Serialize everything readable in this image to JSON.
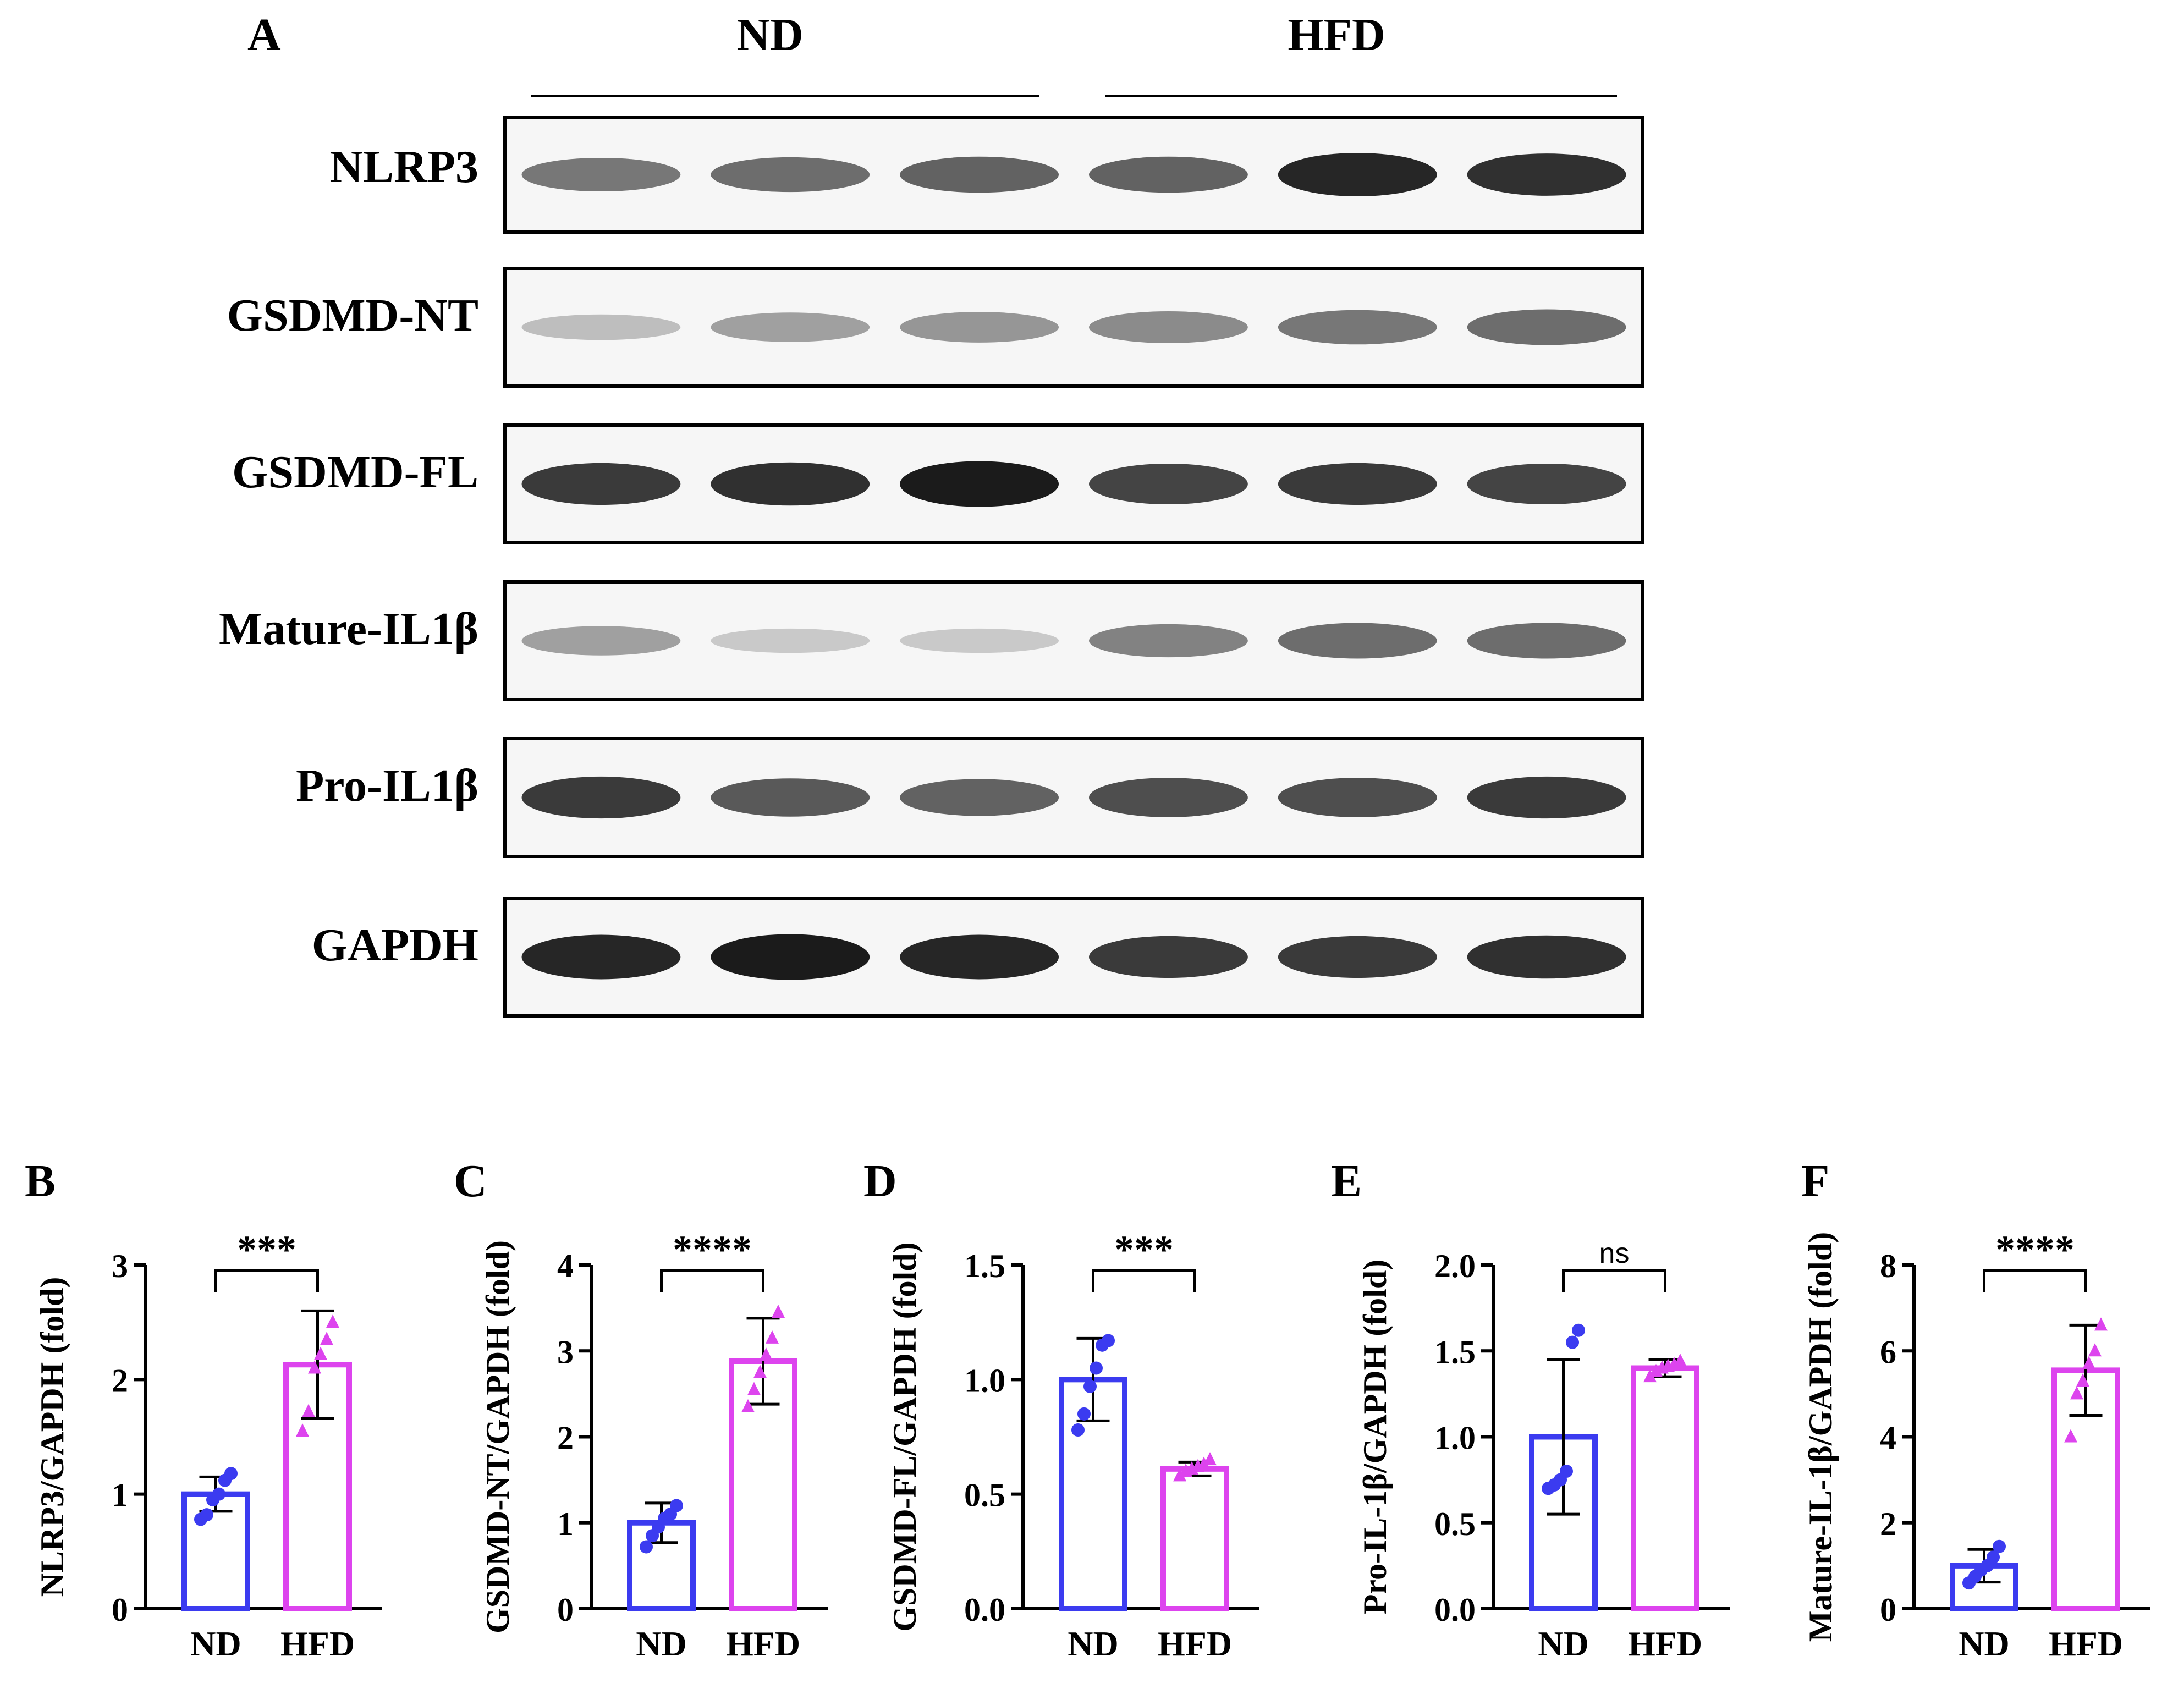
{
  "western_blot": {
    "panel_letter": "A",
    "groups": [
      {
        "label": "ND",
        "lanes": 3
      },
      {
        "label": "HFD",
        "lanes": 3
      }
    ],
    "rows": [
      {
        "label": "NLRP3",
        "intensity": [
          0.55,
          0.6,
          0.65,
          0.65,
          0.95,
          0.9
        ]
      },
      {
        "label": "GSDMD-NT",
        "intensity": [
          0.2,
          0.35,
          0.4,
          0.45,
          0.55,
          0.6
        ]
      },
      {
        "label": "GSDMD-FL",
        "intensity": [
          0.85,
          0.9,
          1.0,
          0.8,
          0.85,
          0.8
        ]
      },
      {
        "label": "Mature-IL1β",
        "intensity": [
          0.35,
          0.15,
          0.15,
          0.5,
          0.6,
          0.6
        ]
      },
      {
        "label": "Pro-IL1β",
        "intensity": [
          0.85,
          0.7,
          0.65,
          0.75,
          0.75,
          0.85
        ]
      },
      {
        "label": "GAPDH",
        "intensity": [
          0.95,
          1.0,
          0.95,
          0.85,
          0.85,
          0.9
        ]
      }
    ]
  },
  "colors": {
    "ND": "#3b3bf0",
    "HFD": "#dd44ee",
    "axis": "#000000"
  },
  "chart_data": [
    {
      "panel_letter": "B",
      "type": "bar",
      "categories": [
        "ND",
        "HFD"
      ],
      "values": [
        1.0,
        2.13
      ],
      "error": [
        0.15,
        0.47
      ],
      "points": [
        [
          0.78,
          0.82,
          0.95,
          1.0,
          1.12,
          1.18
        ],
        [
          1.55,
          1.72,
          2.1,
          2.22,
          2.35,
          2.5
        ]
      ],
      "ylabel": "NLRP3/GAPDH (fold)",
      "ylim": [
        0,
        3
      ],
      "yticks": [
        "0",
        "1",
        "2",
        "3"
      ],
      "ytick_values": [
        0,
        1,
        2,
        3
      ],
      "significance": "***"
    },
    {
      "panel_letter": "C",
      "type": "bar",
      "categories": [
        "ND",
        "HFD"
      ],
      "values": [
        1.0,
        2.88
      ],
      "error": [
        0.23,
        0.5
      ],
      "points": [
        [
          0.72,
          0.85,
          0.95,
          1.05,
          1.1,
          1.2
        ],
        [
          2.35,
          2.55,
          2.75,
          2.95,
          3.15,
          3.45
        ]
      ],
      "ylabel": "GSDMD-NT/GAPDH (fold)",
      "ylim": [
        0,
        4
      ],
      "yticks": [
        "0",
        "1",
        "2",
        "3",
        "4"
      ],
      "ytick_values": [
        0,
        1,
        2,
        3,
        4
      ],
      "significance": "****"
    },
    {
      "panel_letter": "D",
      "type": "bar",
      "categories": [
        "ND",
        "HFD"
      ],
      "values": [
        1.0,
        0.61
      ],
      "error": [
        0.18,
        0.03
      ],
      "points": [
        [
          0.78,
          0.85,
          0.97,
          1.05,
          1.15,
          1.17
        ],
        [
          0.58,
          0.6,
          0.61,
          0.62,
          0.63,
          0.65
        ]
      ],
      "ylabel": "GSDMD-FL/GAPDH (fold)",
      "ylim": [
        0,
        1.5
      ],
      "yticks": [
        "0.0",
        "0.5",
        "1.0",
        "1.5"
      ],
      "ytick_values": [
        0,
        0.5,
        1.0,
        1.5
      ],
      "significance": "***"
    },
    {
      "panel_letter": "E",
      "type": "bar",
      "categories": [
        "ND",
        "HFD"
      ],
      "values": [
        1.0,
        1.4
      ],
      "error": [
        0.45,
        0.05
      ],
      "points": [
        [
          0.7,
          0.72,
          0.75,
          0.8,
          1.55,
          1.62
        ],
        [
          1.35,
          1.38,
          1.4,
          1.41,
          1.42,
          1.44
        ]
      ],
      "ylabel": "Pro-IL-1β/GAPDH (fold)",
      "ylim": [
        0,
        2.0
      ],
      "yticks": [
        "0.0",
        "0.5",
        "1.0",
        "1.5",
        "2.0"
      ],
      "ytick_values": [
        0,
        0.5,
        1.0,
        1.5,
        2.0
      ],
      "significance": "ns"
    },
    {
      "panel_letter": "F",
      "type": "bar",
      "categories": [
        "ND",
        "HFD"
      ],
      "values": [
        1.0,
        5.55
      ],
      "error": [
        0.38,
        1.05
      ],
      "points": [
        [
          0.6,
          0.75,
          0.9,
          1.0,
          1.2,
          1.45
        ],
        [
          4.0,
          5.0,
          5.3,
          5.7,
          6.0,
          6.6
        ]
      ],
      "ylabel": "Mature-IL-1β/GAPDH (fold)",
      "ylim": [
        0,
        8
      ],
      "yticks": [
        "0",
        "2",
        "4",
        "6",
        "8"
      ],
      "ytick_values": [
        0,
        2,
        4,
        6,
        8
      ],
      "significance": "****"
    }
  ]
}
